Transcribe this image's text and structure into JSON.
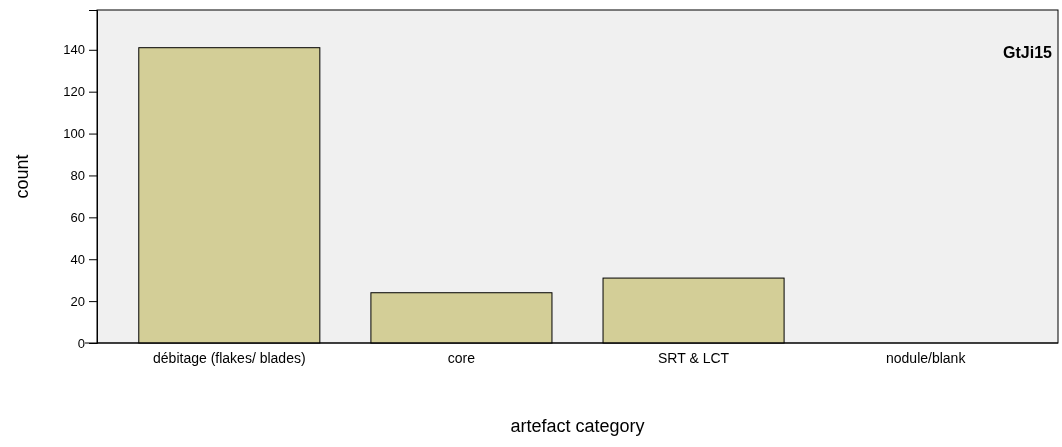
{
  "chart_data": {
    "type": "bar",
    "xlabel": "artefact category",
    "ylabel": "count",
    "categories": [
      "débitage (flakes/ blades)",
      "core",
      "SRT & LCT",
      "nodule/blank"
    ],
    "values": [
      141,
      24,
      31,
      0
    ],
    "color": "#d3ce97",
    "ylim": [
      0,
      159
    ],
    "yticks": [
      0,
      20,
      40,
      60,
      80,
      100,
      120,
      140
    ],
    "grid": false,
    "annotations": [
      "GtJi15"
    ]
  }
}
